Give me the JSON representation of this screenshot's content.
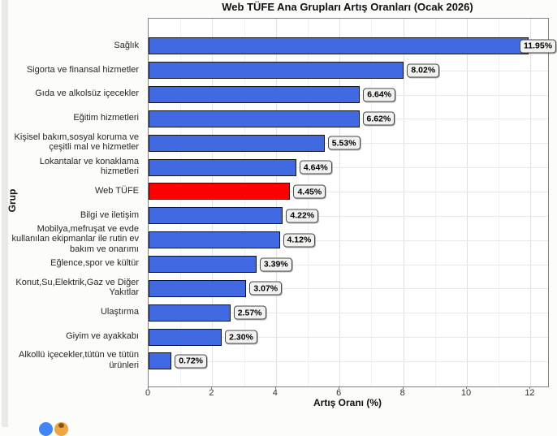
{
  "page": {
    "bottom_icons": [
      {
        "name": "blue-circle-icon",
        "color": "#4285f4",
        "accent": ""
      },
      {
        "name": "orange-circle-icon",
        "color": "#f0a43c",
        "accent": "#82531c"
      }
    ]
  },
  "chart_data": {
    "type": "bar",
    "orientation": "horizontal",
    "title": "Web TÜFE Ana Grupları Artış Oranları (Ocak 2026)",
    "xlabel": "Artış Oranı (%)",
    "ylabel": "Grup",
    "xlim": [
      0,
      12.55
    ],
    "x_ticks": [
      0,
      2,
      4,
      6,
      8,
      10,
      12
    ],
    "grid": true,
    "bar_color": "#4169e1",
    "highlight_category": "Web TÜFE",
    "highlight_color": "#ff0000",
    "categories": [
      "Sağlık",
      "Sigorta ve finansal hizmetler",
      "Gıda ve alkolsüz içecekler",
      "Eğitim hizmetleri",
      "Kişisel bakım,sosyal koruma ve çeşitli mal ve hizmetler",
      "Lokantalar ve konaklama hizmetleri",
      "Web TÜFE",
      "Bilgi ve iletişim",
      "Mobilya,mefruşat ve evde kullanılan ekipmanlar ile rutin ev bakım ve onarımı",
      "Eğlence,spor ve kültür",
      "Konut,Su,Elektrik,Gaz ve Diğer Yakıtlar",
      "Ulaştırma",
      "Giyim ve ayakkabı",
      "Alkollü içecekler,tütün ve tütün ürünleri"
    ],
    "values": [
      11.95,
      8.02,
      6.64,
      6.62,
      5.53,
      4.64,
      4.45,
      4.22,
      4.12,
      3.39,
      3.07,
      2.57,
      2.3,
      0.72
    ],
    "value_labels": [
      "11.95%",
      "8.02%",
      "6.64%",
      "6.62%",
      "5.53%",
      "4.64%",
      "4.45%",
      "4.22%",
      "4.12%",
      "3.39%",
      "3.07%",
      "2.57%",
      "2.30%",
      "0.72%"
    ]
  }
}
